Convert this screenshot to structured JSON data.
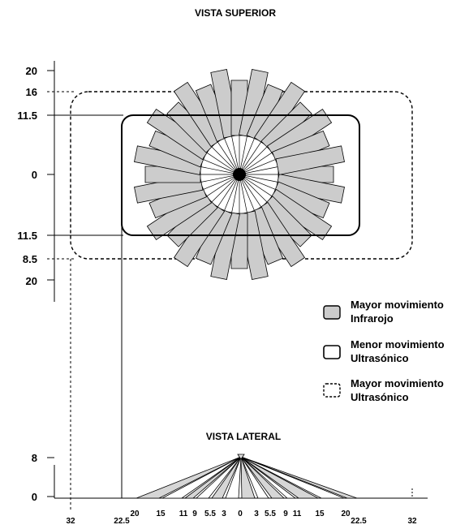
{
  "top_view": {
    "title": "VISTA SUPERIOR",
    "y_labels": [
      "20",
      "16",
      "11.5",
      "0",
      "11.5",
      "8.5",
      "20"
    ]
  },
  "side_view": {
    "title": "VISTA LATERAL",
    "y_labels": [
      "8",
      "0"
    ],
    "x_labels": [
      "32",
      "22.5",
      "20",
      "15",
      "11",
      "9",
      "5.5",
      "3",
      "0",
      "3",
      "5.5",
      "9",
      "11",
      "15",
      "20",
      "22.5",
      "32"
    ]
  },
  "legend": [
    {
      "line1": "Mayor movimiento",
      "line2": "Infrarojo",
      "swatch": "gray-filled-box"
    },
    {
      "line1": "Menor movimiento",
      "line2": "Ultrasónico",
      "swatch": "solid-outline-box"
    },
    {
      "line1": "Mayor movimiento",
      "line2": "Ultrasónico",
      "swatch": "dashed-outline-box"
    }
  ],
  "colors": {
    "ray_fill": "#cccccc",
    "stroke": "#000000",
    "background": "#ffffff"
  }
}
